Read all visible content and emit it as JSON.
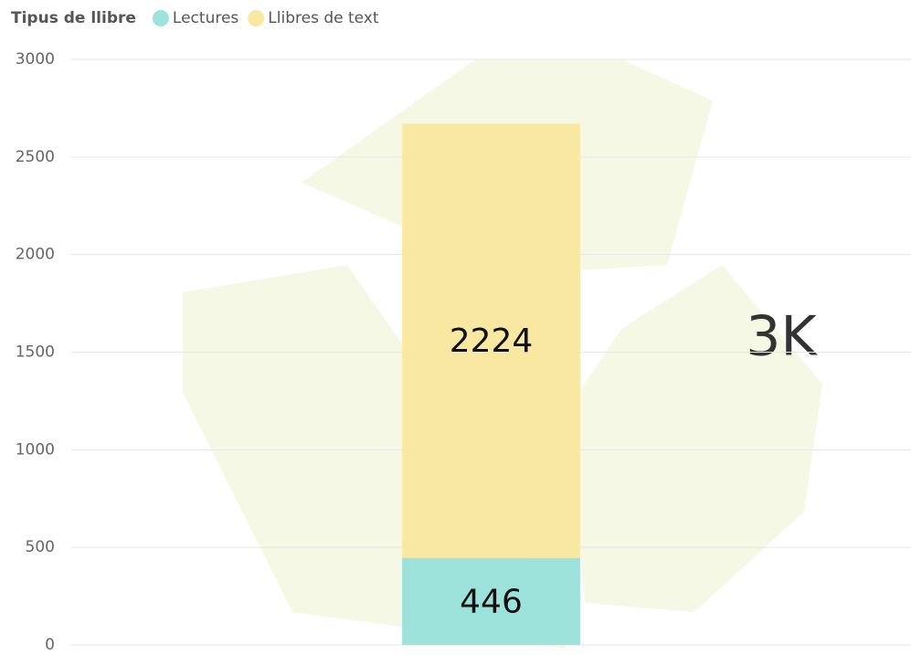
{
  "chart_data": {
    "type": "stacked_bar",
    "legend_title": "Tipus de llibre",
    "categories": [
      null
    ],
    "series": [
      {
        "name": "Lectures",
        "color": "#9de3db",
        "values": [
          446
        ]
      },
      {
        "name": "Llibres de text",
        "color": "#f9e8a1",
        "values": [
          2224
        ]
      }
    ],
    "ylim": [
      0,
      3000
    ],
    "yticks": [
      0,
      500,
      1000,
      1500,
      2000,
      2500,
      3000
    ],
    "grid": true,
    "annotation": "3K"
  }
}
